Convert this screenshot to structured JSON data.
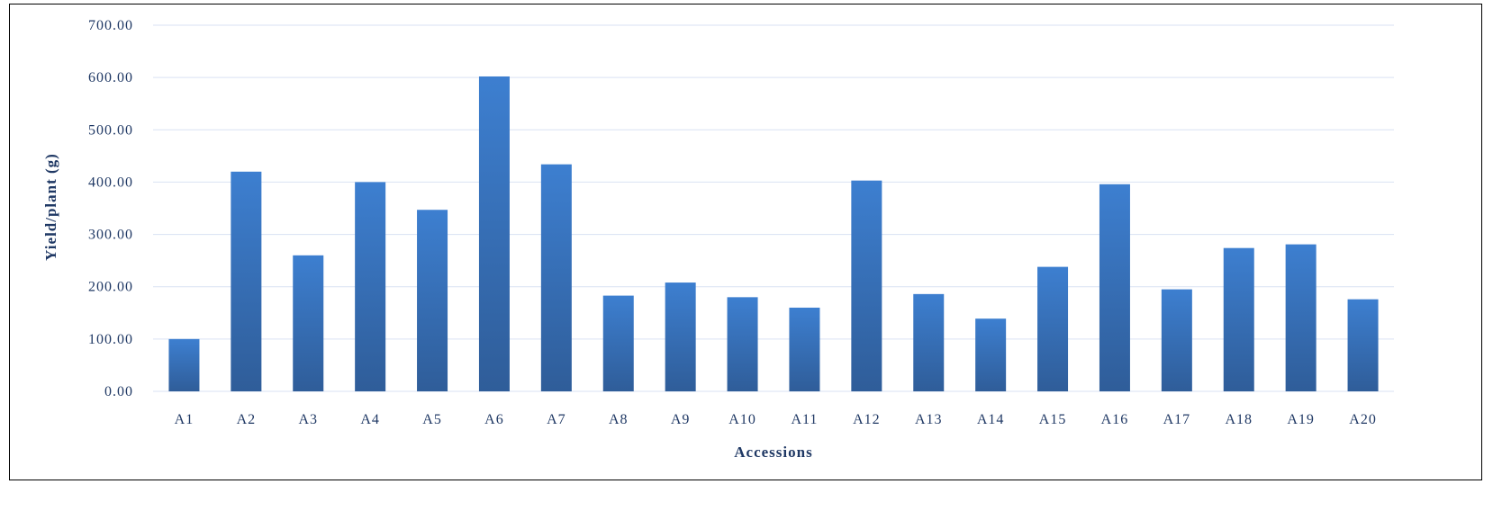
{
  "chart_data": {
    "type": "bar",
    "title": "",
    "xlabel": "Accessions",
    "ylabel": "Yield/plant (g)",
    "ylim": [
      0,
      700
    ],
    "yticks": [
      "0.00",
      "100.00",
      "200.00",
      "300.00",
      "400.00",
      "500.00",
      "600.00",
      "700.00"
    ],
    "grid": true,
    "legend": "none",
    "bar_color_top": "#3d7fd0",
    "bar_color_bottom": "#2f5d99",
    "categories": [
      "A1",
      "A2",
      "A3",
      "A4",
      "A5",
      "A6",
      "A7",
      "A8",
      "A9",
      "A10",
      "A11",
      "A12",
      "A13",
      "A14",
      "A15",
      "A16",
      "A17",
      "A18",
      "A19",
      "A20"
    ],
    "values": [
      100,
      420,
      260,
      400,
      347,
      602,
      434,
      183,
      208,
      180,
      160,
      403,
      186,
      139,
      238,
      396,
      195,
      274,
      281,
      176
    ]
  }
}
